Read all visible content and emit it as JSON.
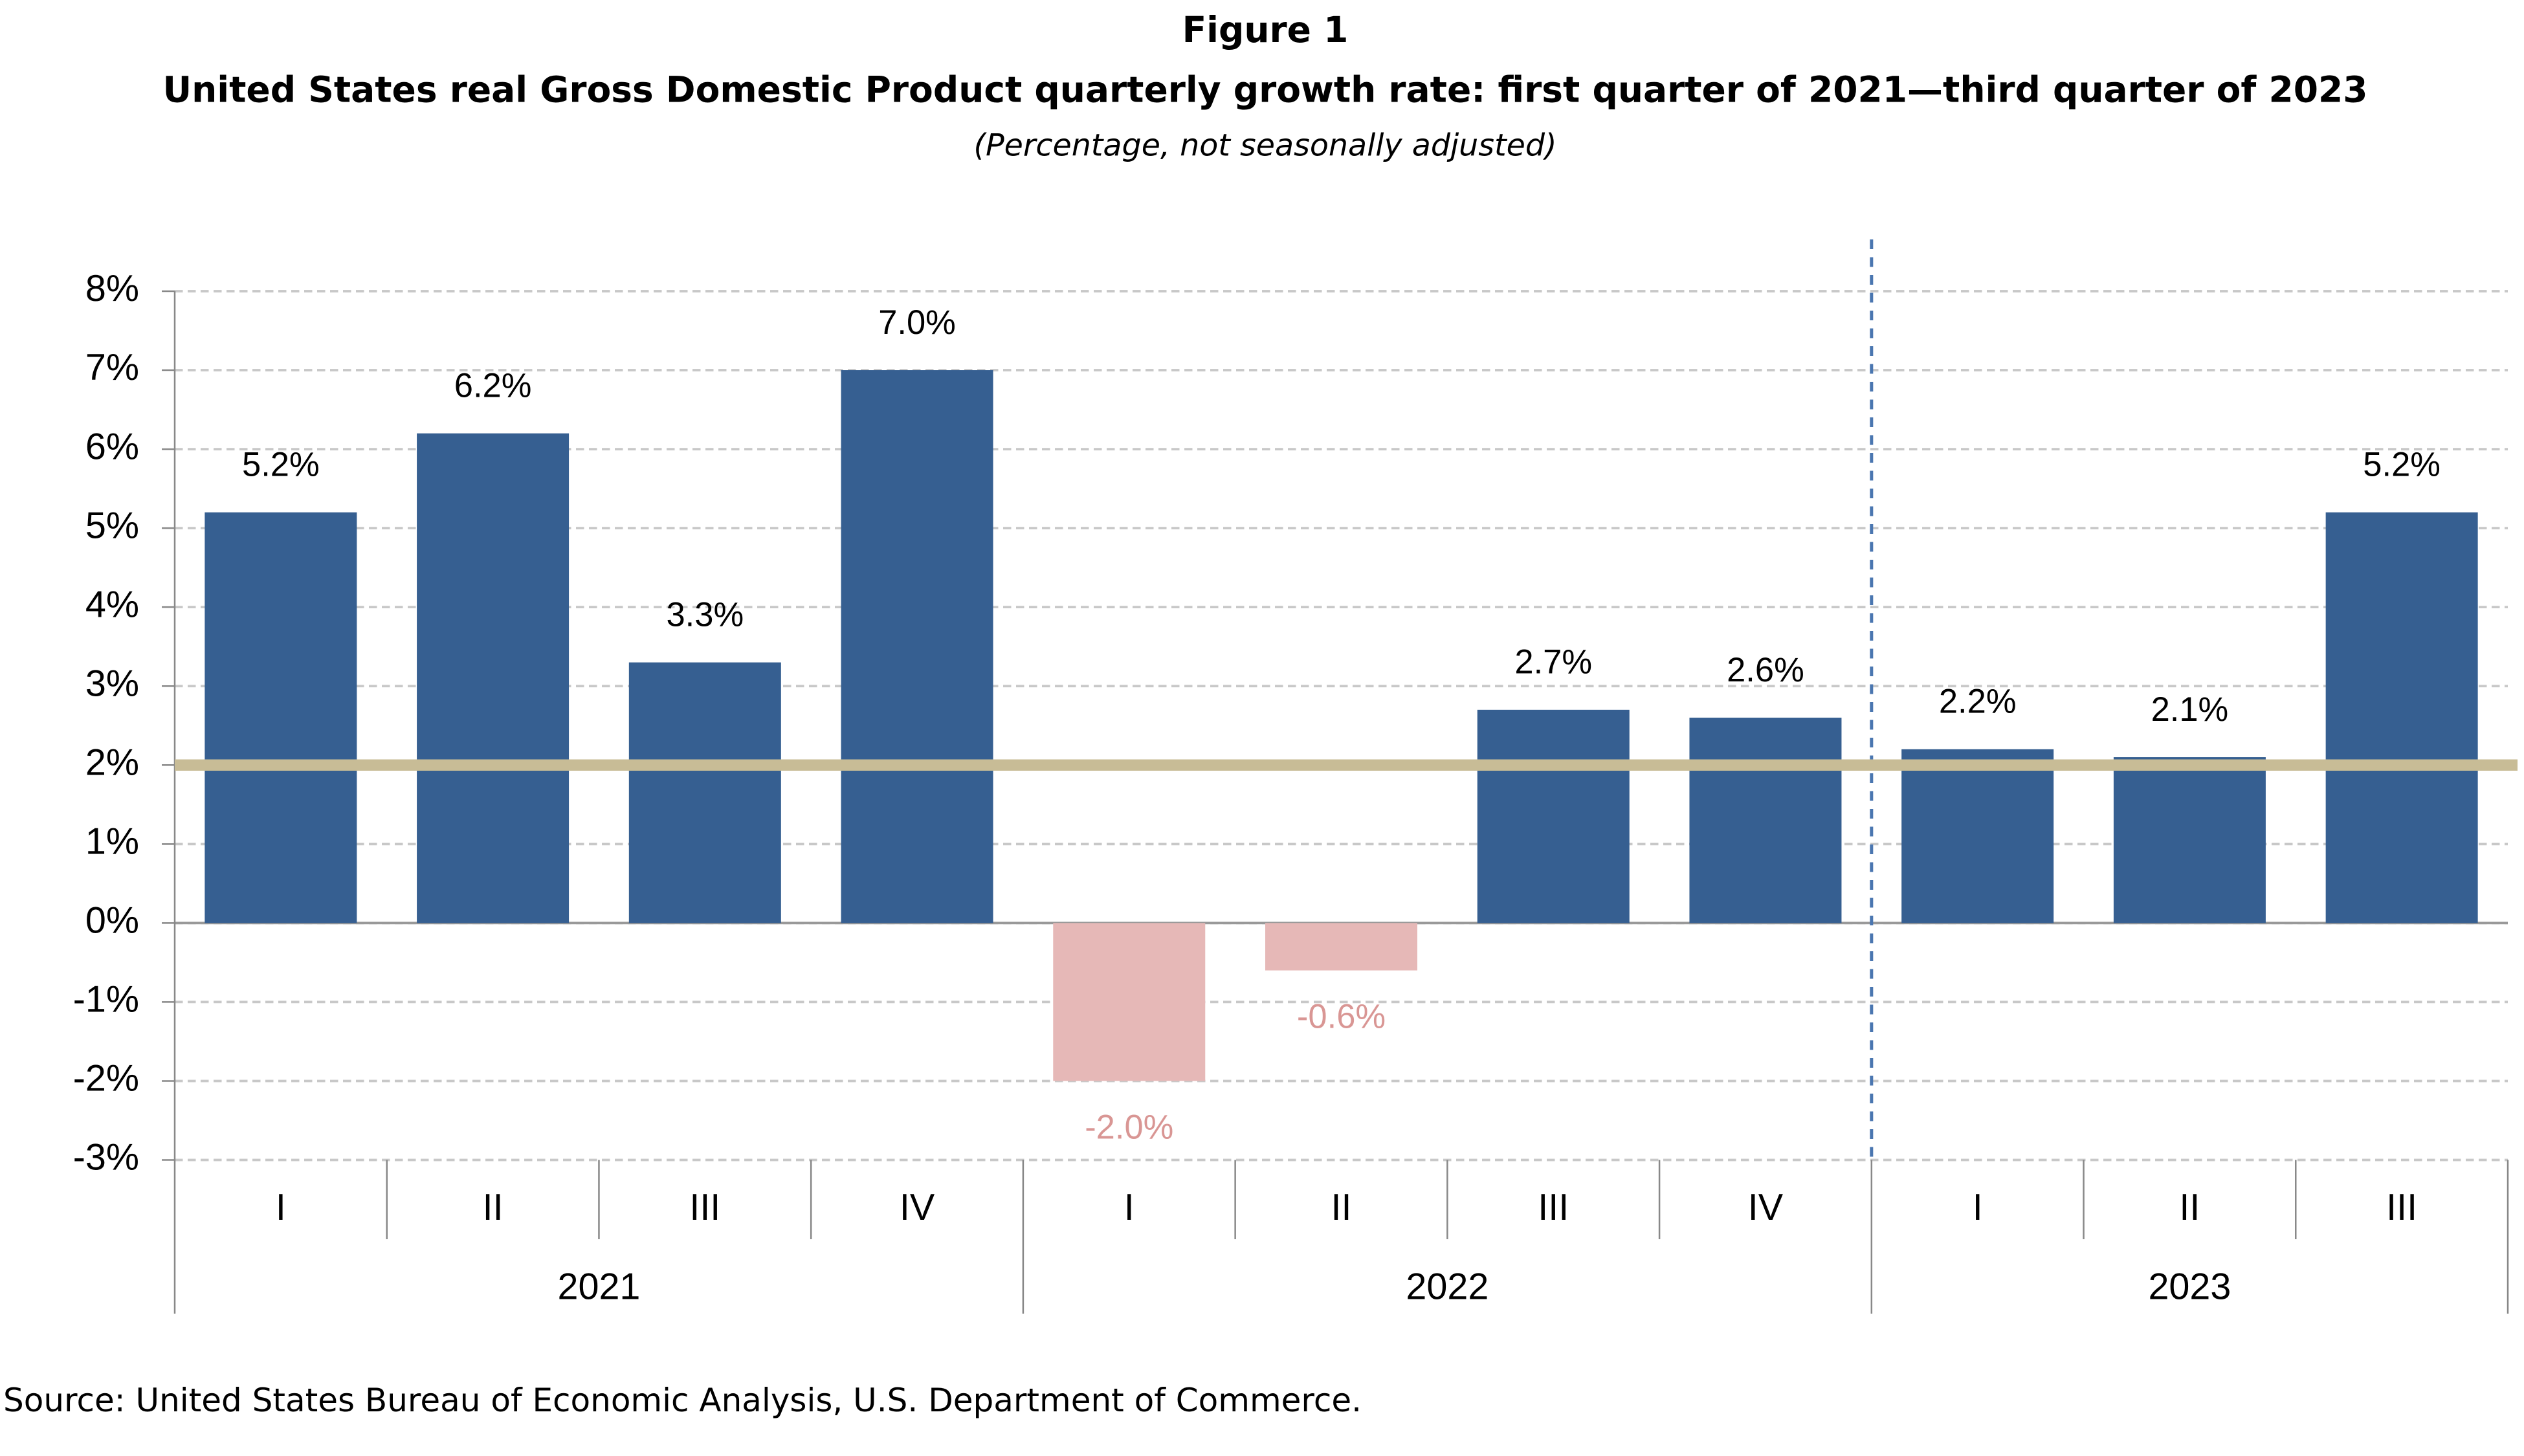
{
  "chart_data": {
    "type": "bar",
    "title": "Figure 1",
    "subtitle": "United States real Gross Domestic Product quarterly growth rate: first quarter of 2021—third quarter of 2023",
    "note": "(Percentage, not seasonally adjusted)",
    "source": "Source: United States Bureau of Economic Analysis, U.S. Department of Commerce.",
    "categories": [
      "I",
      "II",
      "III",
      "IV",
      "I",
      "II",
      "III",
      "IV",
      "I",
      "II",
      "III"
    ],
    "groups": [
      "2021",
      "2022",
      "2023"
    ],
    "values": [
      5.2,
      6.2,
      3.3,
      7.0,
      -2.0,
      -0.6,
      2.7,
      2.6,
      2.2,
      2.1,
      5.2
    ],
    "value_labels": [
      "5.2%",
      "6.2%",
      "3.3%",
      "7.0%",
      "-2.0%",
      "-0.6%",
      "2.7%",
      "2.6%",
      "2.2%",
      "2.1%",
      "5.2%"
    ],
    "color": "#365f91",
    "negative_color": "#e6b8b7",
    "negative_label_color": "#d99694",
    "reference_line": {
      "value": 2,
      "color": "#c8bc96"
    },
    "ylim": [
      -3,
      8
    ],
    "yticks": [
      {
        "value": -3,
        "label": "-3%"
      },
      {
        "value": -2,
        "label": "-2%"
      },
      {
        "value": -1,
        "label": "-1%"
      },
      {
        "value": 0,
        "label": "0%"
      },
      {
        "value": 1,
        "label": "1%"
      },
      {
        "value": 2,
        "label": "2%"
      },
      {
        "value": 3,
        "label": "3%"
      },
      {
        "value": 4,
        "label": "4%"
      },
      {
        "value": 5,
        "label": "5%"
      },
      {
        "value": 6,
        "label": "6%"
      },
      {
        "value": 7,
        "label": "7%"
      },
      {
        "value": 8,
        "label": "8%"
      }
    ],
    "grid": true
  }
}
